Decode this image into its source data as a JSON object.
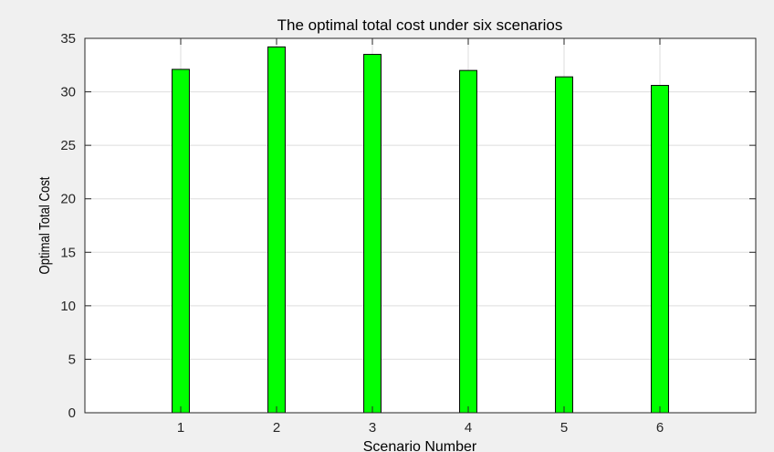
{
  "chart_data": {
    "type": "bar",
    "title": "The optimal total cost under six scenarios",
    "xlabel": "Scenario Number",
    "ylabel": "Optimal Total Cost",
    "categories": [
      "1",
      "2",
      "3",
      "4",
      "5",
      "6"
    ],
    "values": [
      32.1,
      34.2,
      33.5,
      32.0,
      31.4,
      30.6
    ],
    "xlim": [
      0,
      7
    ],
    "ylim": [
      0,
      35
    ],
    "yticks": [
      0,
      5,
      10,
      15,
      20,
      25,
      30,
      35
    ],
    "grid": true,
    "legend": "none",
    "colors": {
      "bar_fill": "#00ff00",
      "bar_edge": "#000000",
      "grid": "#dedede",
      "axes_bg": "#ffffff",
      "figure_bg": "#f0f0f0"
    }
  }
}
